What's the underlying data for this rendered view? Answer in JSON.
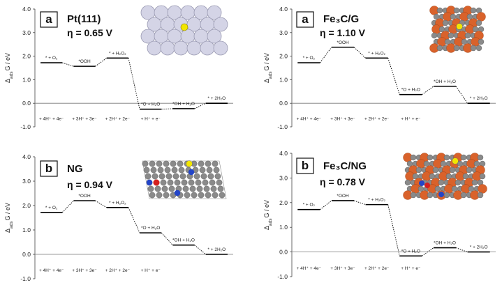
{
  "colors": {
    "level": "#000000",
    "connector": "#000000",
    "zero_line": "#777777",
    "pt_atom": "#d4d4e6",
    "yellow_atom": "#f2e600",
    "iron_atom": "#d9622b",
    "carbon_atom": "#8a8a8a",
    "nitrogen_atom": "#2345c8",
    "red_atom": "#d42020"
  },
  "chart_data": [
    {
      "type": "line",
      "panel_label": "a",
      "title": "Pt(111)",
      "eta_label": "η = 0.65 V",
      "ylabel": "Δ",
      "ylabel_sub": "ads",
      "ylabel_rest": "G / eV",
      "ylim": [
        -1.0,
        4.0
      ],
      "yticks": [
        "4.0",
        "3.0",
        "2.0",
        "1.0",
        "0.0",
        "-1.0"
      ],
      "states": [
        "* + O₂",
        "*OOH",
        "* + H₂O₂",
        "*O + H₂O",
        "*OH + H₂O",
        "* + 2H₂O"
      ],
      "values": [
        1.72,
        1.57,
        1.92,
        -0.25,
        -0.23,
        0.0
      ],
      "bottom_labels": [
        "+ 4H⁺ + 4e⁻",
        "+ 3H⁺ + 3e⁻",
        "+ 2H⁺ + 2e⁻",
        "+ H⁺ + e⁻"
      ],
      "structure_icon": "pt-slab-icon"
    },
    {
      "type": "line",
      "panel_label": "a",
      "title": "Fe₃C/G",
      "eta_label": "η = 1.10 V",
      "ylabel": "Δ",
      "ylabel_sub": "ads",
      "ylabel_rest": "G / eV",
      "ylim": [
        -1.0,
        4.0
      ],
      "yticks": [
        "4.0",
        "3.0",
        "2.0",
        "1.0",
        "0.0",
        "-1.0"
      ],
      "states": [
        "* + O₂",
        "*OOH",
        "* + H₂O₂",
        "*O + H₂O",
        "*OH + H₂O",
        "* + 2H₂O"
      ],
      "values": [
        1.72,
        2.38,
        1.92,
        0.37,
        0.72,
        0.0
      ],
      "bottom_labels": [
        "+ 4H⁺ + 4e⁻",
        "+ 3H⁺ + 3e⁻",
        "+ 2H⁺ + 2e⁻",
        "+ H⁺ + e⁻"
      ],
      "structure_icon": "fe3c-graphene-icon"
    },
    {
      "type": "line",
      "panel_label": "b",
      "title": "NG",
      "eta_label": "η = 0.94 V",
      "ylabel": "Δ",
      "ylabel_sub": "ads",
      "ylabel_rest": "G / eV",
      "ylim": [
        -1.0,
        4.0
      ],
      "yticks": [
        "4.0",
        "3.0",
        "2.0",
        "1.0",
        "0.0",
        "-1.0"
      ],
      "states": [
        "* + O₂",
        "*OOH",
        "* + H₂O₂",
        "*O + H₂O",
        "*OH + H₂O",
        "* + 2H₂O"
      ],
      "values": [
        1.72,
        2.2,
        1.92,
        0.88,
        0.38,
        0.0
      ],
      "bottom_labels": [
        "+ 4H⁺ + 4e⁻",
        "+ 3H⁺ + 3e⁻",
        "+ 2H⁺ + 2e⁻",
        "+ H⁺ + e⁻"
      ],
      "structure_icon": "ng-sheet-icon"
    },
    {
      "type": "line",
      "panel_label": "b",
      "title": "Fe₃C/NG",
      "eta_label": "η = 0.78 V",
      "ylabel": "Δ",
      "ylabel_sub": "ads",
      "ylabel_rest": "G / eV",
      "ylim": [
        -1.0,
        4.0
      ],
      "yticks": [
        "4.0",
        "3.0",
        "2.0",
        "1.0",
        "0.0",
        "-1.0"
      ],
      "states": [
        "* + O₂",
        "*OOH",
        "* + H₂O₂",
        "*O + H₂O",
        "*OH + H₂O",
        "* + 2H₂O"
      ],
      "values": [
        1.72,
        2.08,
        1.92,
        -0.16,
        0.17,
        0.0
      ],
      "bottom_labels": [
        "+ 4H⁺ + 4e⁻",
        "+ 3H⁺ + 3e⁻",
        "+ 2H⁺ + 2e⁻",
        "+ H⁺ + e⁻"
      ],
      "structure_icon": "fe3c-ng-icon"
    }
  ]
}
